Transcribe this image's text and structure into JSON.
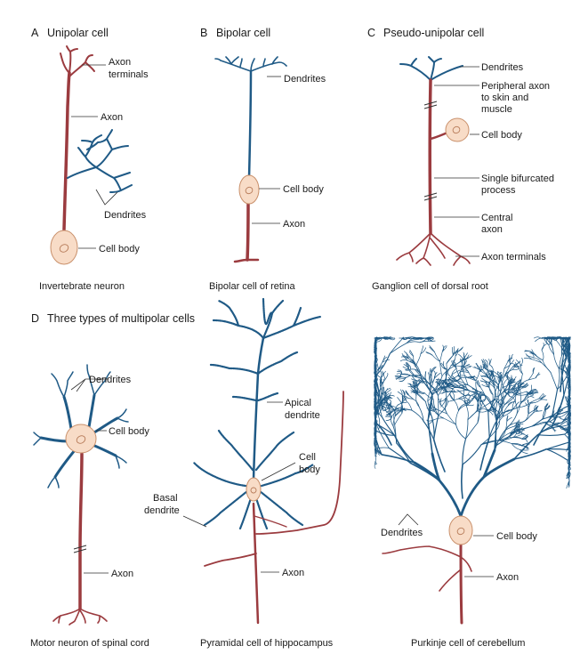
{
  "panels": {
    "a": {
      "letter": "A",
      "title": "Unipolar cell",
      "caption": "Invertebrate neuron",
      "labels": {
        "axon_terminals_1": "Axon",
        "axon_terminals_2": "terminals",
        "axon": "Axon",
        "dendrites": "Dendrites",
        "cell_body": "Cell body"
      }
    },
    "b": {
      "letter": "B",
      "title": "Bipolar cell",
      "caption": "Bipolar cell of retina",
      "labels": {
        "dendrites": "Dendrites",
        "cell_body": "Cell body",
        "axon": "Axon"
      }
    },
    "c": {
      "letter": "C",
      "title": "Pseudo-unipolar cell",
      "caption": "Ganglion cell of dorsal root",
      "labels": {
        "dendrites": "Dendrites",
        "peripheral_1": "Peripheral axon",
        "peripheral_2": "to skin and",
        "peripheral_3": "muscle",
        "cell_body": "Cell body",
        "bifurcated_1": "Single bifurcated",
        "bifurcated_2": "process",
        "central_1": "Central",
        "central_2": "axon",
        "axon_terminals": "Axon terminals"
      }
    },
    "d": {
      "letter": "D",
      "title": "Three types of multipolar cells",
      "motor": {
        "caption": "Motor neuron of spinal cord",
        "labels": {
          "dendrites": "Dendrites",
          "cell_body": "Cell body",
          "axon": "Axon"
        }
      },
      "pyramidal": {
        "caption": "Pyramidal cell of hippocampus",
        "labels": {
          "apical_1": "Apical",
          "apical_2": "dendrite",
          "cell_1": "Cell",
          "cell_2": "body",
          "basal_1": "Basal",
          "basal_2": "dendrite",
          "axon": "Axon"
        }
      },
      "purkinje": {
        "caption": "Purkinje cell of cerebellum",
        "labels": {
          "dendrites": "Dendrites",
          "cell_body": "Cell body",
          "axon": "Axon"
        }
      }
    }
  },
  "colors": {
    "axon": "#9b3b3f",
    "dendrite": "#1f5a86",
    "cell_body": "#f8dcc7"
  }
}
